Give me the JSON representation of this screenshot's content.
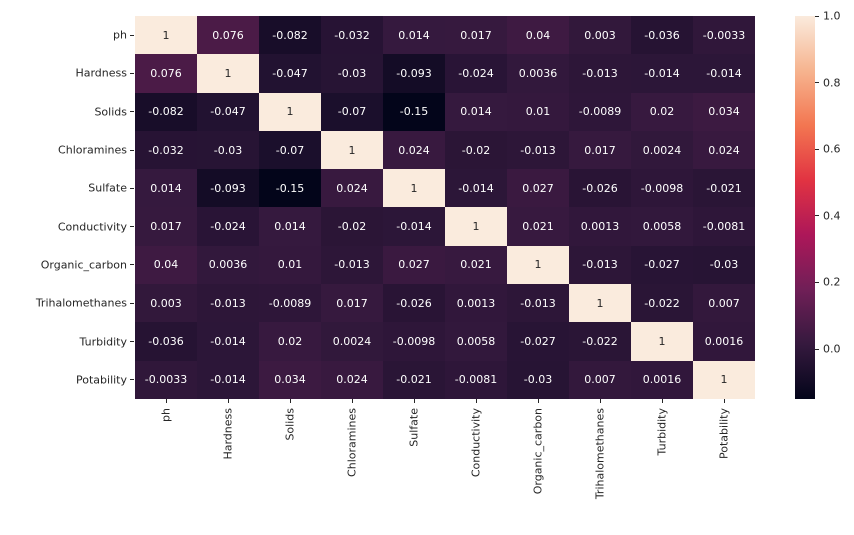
{
  "figure": {
    "background_color": "#ffffff"
  },
  "chart_data": {
    "type": "heatmap",
    "title": "",
    "xlabel": "",
    "ylabel": "",
    "categories": [
      "ph",
      "Hardness",
      "Solids",
      "Chloramines",
      "Sulfate",
      "Conductivity",
      "Organic_carbon",
      "Trihalomethanes",
      "Turbidity",
      "Potability"
    ],
    "matrix_display": [
      [
        "1",
        "0.076",
        "-0.082",
        "-0.032",
        "0.014",
        "0.017",
        "0.04",
        "0.003",
        "-0.036",
        "-0.0033"
      ],
      [
        "0.076",
        "1",
        "-0.047",
        "-0.03",
        "-0.093",
        "-0.024",
        "0.0036",
        "-0.013",
        "-0.014",
        "-0.014"
      ],
      [
        "-0.082",
        "-0.047",
        "1",
        "-0.07",
        "-0.15",
        "0.014",
        "0.01",
        "-0.0089",
        "0.02",
        "0.034"
      ],
      [
        "-0.032",
        "-0.03",
        "-0.07",
        "1",
        "0.024",
        "-0.02",
        "-0.013",
        "0.017",
        "0.0024",
        "0.024"
      ],
      [
        "0.014",
        "-0.093",
        "-0.15",
        "0.024",
        "1",
        "-0.014",
        "0.027",
        "-0.026",
        "-0.0098",
        "-0.021"
      ],
      [
        "0.017",
        "-0.024",
        "0.014",
        "-0.02",
        "-0.014",
        "1",
        "0.021",
        "0.0013",
        "0.0058",
        "-0.0081"
      ],
      [
        "0.04",
        "0.0036",
        "0.01",
        "-0.013",
        "0.027",
        "0.021",
        "1",
        "-0.013",
        "-0.027",
        "-0.03"
      ],
      [
        "0.003",
        "-0.013",
        "-0.0089",
        "0.017",
        "-0.026",
        "0.0013",
        "-0.013",
        "1",
        "-0.022",
        "0.007"
      ],
      [
        "-0.036",
        "-0.014",
        "0.02",
        "0.0024",
        "-0.0098",
        "0.0058",
        "-0.027",
        "-0.022",
        "1",
        "0.0016"
      ],
      [
        "-0.0033",
        "-0.014",
        "0.034",
        "0.024",
        "-0.021",
        "-0.0081",
        "-0.03",
        "0.007",
        "0.0016",
        "1"
      ]
    ],
    "vmin": -0.15,
    "vmax": 1.0,
    "grid": false,
    "legend_position": "colorbar-right",
    "colormap": {
      "name": "rocket",
      "stops": [
        [
          "0",
          "#03051a"
        ],
        [
          "0.143",
          "#35193e"
        ],
        [
          "0.286",
          "#701f57"
        ],
        [
          "0.429",
          "#ad1759"
        ],
        [
          "0.571",
          "#e13342"
        ],
        [
          "0.714",
          "#f37651"
        ],
        [
          "0.857",
          "#f6b48f"
        ],
        [
          "1",
          "#faebdd"
        ]
      ]
    },
    "colorbar": {
      "tick_labels": [
        "1.0",
        "0.8",
        "0.6",
        "0.4",
        "0.2",
        "0.0"
      ],
      "tick_values": [
        1.0,
        0.8,
        0.6,
        0.4,
        0.2,
        0.0
      ]
    },
    "annotation_text_color_on_dark": "#ffffff",
    "annotation_text_color_on_light": "#262626",
    "axis_tick_color": "#262626",
    "axis_label_color": "#262626"
  }
}
